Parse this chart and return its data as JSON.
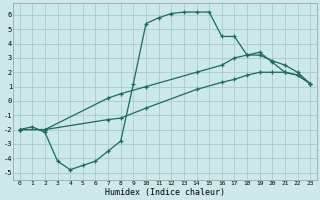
{
  "xlabel": "Humidex (Indice chaleur)",
  "xlim_min": -0.5,
  "xlim_max": 23.5,
  "ylim_min": -5.5,
  "ylim_max": 6.8,
  "xticks": [
    0,
    1,
    2,
    3,
    4,
    5,
    6,
    7,
    8,
    9,
    10,
    11,
    12,
    13,
    14,
    15,
    16,
    17,
    18,
    19,
    20,
    21,
    22,
    23
  ],
  "yticks": [
    -5,
    -4,
    -3,
    -2,
    -1,
    0,
    1,
    2,
    3,
    4,
    5,
    6
  ],
  "bg_color": "#cce8e8",
  "grid_color": "#aacccc",
  "line_color": "#1a6b5a",
  "line1_x": [
    0,
    1,
    2,
    3,
    4,
    5,
    6,
    7,
    8,
    9,
    10,
    11,
    12,
    13,
    14,
    15,
    16,
    17,
    18,
    19,
    20,
    21,
    22,
    23
  ],
  "line1_y": [
    -2,
    -1.8,
    -2.2,
    -4.2,
    -4.8,
    -4.5,
    -4.2,
    -3.5,
    -2.8,
    1.2,
    5.4,
    5.8,
    6.1,
    6.2,
    6.2,
    6.2,
    4.5,
    4.5,
    3.2,
    3.4,
    2.7,
    2.0,
    1.8,
    1.2
  ],
  "line2_x": [
    0,
    2,
    7,
    8,
    10,
    14,
    16,
    17,
    18,
    19,
    20,
    21,
    22,
    23
  ],
  "line2_y": [
    -2,
    -2,
    0.2,
    0.5,
    1.0,
    2.0,
    2.5,
    3.0,
    3.2,
    3.2,
    2.8,
    2.5,
    2.0,
    1.2
  ],
  "line3_x": [
    0,
    2,
    7,
    8,
    10,
    14,
    16,
    17,
    18,
    19,
    20,
    21,
    22,
    23
  ],
  "line3_y": [
    -2,
    -2,
    -1.3,
    -1.2,
    -0.5,
    0.8,
    1.3,
    1.5,
    1.8,
    2.0,
    2.0,
    2.0,
    1.8,
    1.2
  ]
}
